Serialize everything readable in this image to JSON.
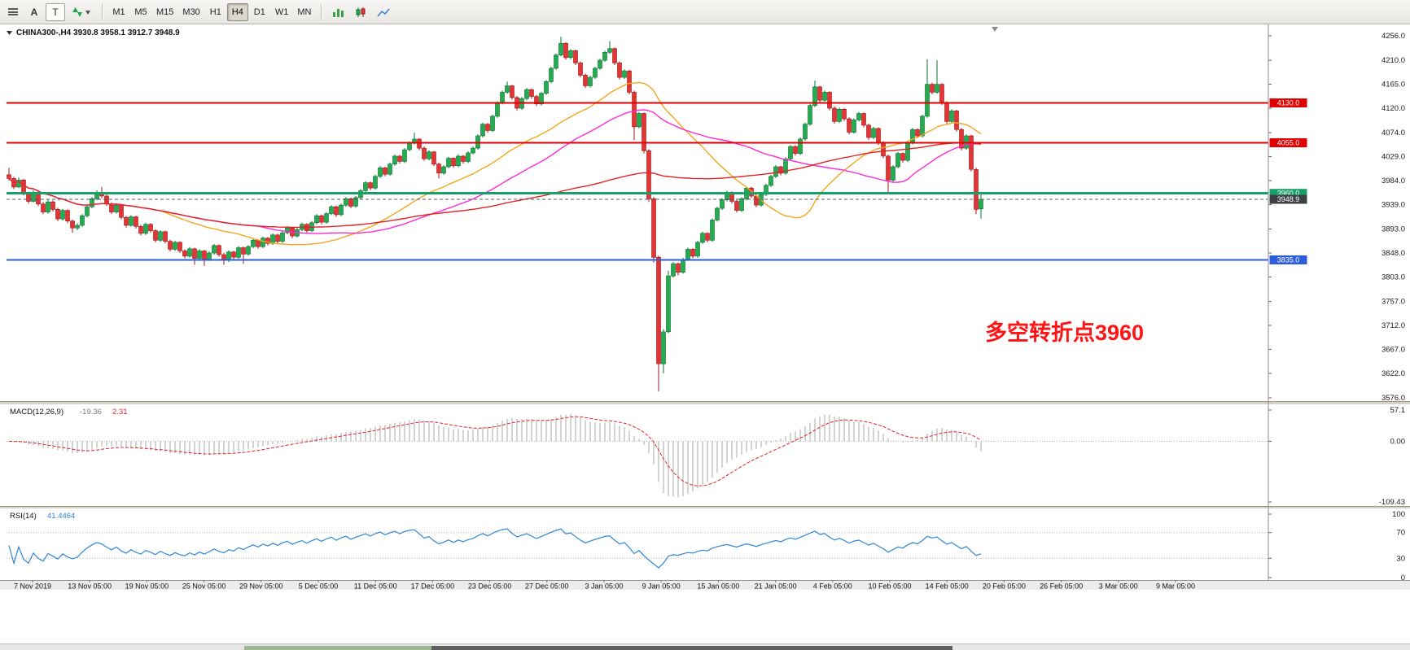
{
  "toolbar": {
    "a_label": "A",
    "t_label": "T",
    "timeframes": [
      "M1",
      "M5",
      "M15",
      "M30",
      "H1",
      "H4",
      "D1",
      "W1",
      "MN"
    ],
    "active_timeframe": "H4"
  },
  "chart": {
    "title": "CHINA300-,H4 3930.8 3958.1 3912.7 3948.9",
    "symbol": "CHINA300-",
    "timeframe": "H4",
    "open": "3930.8",
    "high": "3958.1",
    "low": "3912.7",
    "close": "3948.9"
  },
  "chart_data": {
    "type": "candlestick",
    "symbol": "CHINA300-",
    "timeframe": "H4",
    "ylim": [
      3576.0,
      4256.0
    ],
    "y_ticks": [
      4256.0,
      4210.0,
      4165.0,
      4120.0,
      4074.0,
      4029.0,
      3984.0,
      3939.0,
      3893.0,
      3848.0,
      3803.0,
      3757.0,
      3712.0,
      3667.0,
      3622.0,
      3576.0
    ],
    "x_ticks": [
      "7 Nov 2019",
      "13 Nov 05:00",
      "19 Nov 05:00",
      "25 Nov 05:00",
      "29 Nov 05:00",
      "5 Dec 05:00",
      "11 Dec 05:00",
      "17 Dec 05:00",
      "23 Dec 05:00",
      "27 Dec 05:00",
      "3 Jan 05:00",
      "9 Jan 05:00",
      "15 Jan 05:00",
      "21 Jan 05:00",
      "4 Feb 05:00",
      "10 Feb 05:00",
      "14 Feb 05:00",
      "20 Feb 05:00",
      "26 Feb 05:00",
      "3 Mar 05:00",
      "9 Mar 05:00"
    ],
    "colors": {
      "up_fill": "#25ab50",
      "up_border": "#0d6e2e",
      "down_fill": "#e23535",
      "down_border": "#9e1717",
      "background": "#ffffff"
    },
    "candles": [
      [
        3995,
        4008,
        3984,
        3988
      ],
      [
        3988,
        3991,
        3968,
        3972
      ],
      [
        3972,
        3990,
        3970,
        3985
      ],
      [
        3985,
        3987,
        3956,
        3960
      ],
      [
        3960,
        3963,
        3941,
        3945
      ],
      [
        3945,
        3966,
        3943,
        3962
      ],
      [
        3962,
        3965,
        3936,
        3940
      ],
      [
        3940,
        3944,
        3921,
        3925
      ],
      [
        3925,
        3948,
        3922,
        3944
      ],
      [
        3944,
        3947,
        3926,
        3930
      ],
      [
        3930,
        3933,
        3908,
        3912
      ],
      [
        3912,
        3931,
        3909,
        3928
      ],
      [
        3928,
        3930,
        3904,
        3908
      ],
      [
        3908,
        3911,
        3886,
        3895
      ],
      [
        3895,
        3904,
        3891,
        3900
      ],
      [
        3900,
        3921,
        3897,
        3918
      ],
      [
        3918,
        3938,
        3915,
        3935
      ],
      [
        3935,
        3953,
        3932,
        3950
      ],
      [
        3950,
        3966,
        3947,
        3962
      ],
      [
        3962,
        3972,
        3951,
        3955
      ],
      [
        3955,
        3958,
        3936,
        3940
      ],
      [
        3940,
        3943,
        3921,
        3925
      ],
      [
        3925,
        3941,
        3922,
        3938
      ],
      [
        3938,
        3940,
        3911,
        3915
      ],
      [
        3915,
        3918,
        3896,
        3900
      ],
      [
        3900,
        3919,
        3897,
        3916
      ],
      [
        3916,
        3918,
        3894,
        3898
      ],
      [
        3898,
        3901,
        3881,
        3885
      ],
      [
        3885,
        3905,
        3882,
        3902
      ],
      [
        3902,
        3904,
        3886,
        3890
      ],
      [
        3890,
        3893,
        3868,
        3872
      ],
      [
        3872,
        3891,
        3869,
        3888
      ],
      [
        3888,
        3890,
        3866,
        3870
      ],
      [
        3870,
        3873,
        3851,
        3855
      ],
      [
        3855,
        3871,
        3852,
        3868
      ],
      [
        3868,
        3870,
        3848,
        3852
      ],
      [
        3852,
        3855,
        3838,
        3842
      ],
      [
        3842,
        3859,
        3839,
        3856
      ],
      [
        3856,
        3858,
        3826,
        3838
      ],
      [
        3838,
        3855,
        3835,
        3852
      ],
      [
        3852,
        3854,
        3824,
        3836
      ],
      [
        3836,
        3851,
        3833,
        3848
      ],
      [
        3848,
        3865,
        3845,
        3862
      ],
      [
        3862,
        3864,
        3841,
        3845
      ],
      [
        3845,
        3848,
        3826,
        3834
      ],
      [
        3834,
        3853,
        3831,
        3850
      ],
      [
        3850,
        3852,
        3836,
        3840
      ],
      [
        3840,
        3861,
        3837,
        3858
      ],
      [
        3858,
        3860,
        3828,
        3846
      ],
      [
        3846,
        3863,
        3843,
        3860
      ],
      [
        3860,
        3875,
        3857,
        3872
      ],
      [
        3872,
        3874,
        3856,
        3860
      ],
      [
        3860,
        3879,
        3857,
        3876
      ],
      [
        3876,
        3878,
        3862,
        3866
      ],
      [
        3866,
        3885,
        3863,
        3882
      ],
      [
        3882,
        3884,
        3866,
        3870
      ],
      [
        3870,
        3889,
        3867,
        3886
      ],
      [
        3886,
        3898,
        3883,
        3895
      ],
      [
        3895,
        3897,
        3876,
        3880
      ],
      [
        3880,
        3895,
        3877,
        3892
      ],
      [
        3892,
        3905,
        3889,
        3902
      ],
      [
        3902,
        3904,
        3886,
        3890
      ],
      [
        3890,
        3908,
        3887,
        3905
      ],
      [
        3905,
        3921,
        3902,
        3918
      ],
      [
        3918,
        3920,
        3902,
        3906
      ],
      [
        3906,
        3925,
        3903,
        3922
      ],
      [
        3922,
        3938,
        3919,
        3935
      ],
      [
        3935,
        3937,
        3916,
        3920
      ],
      [
        3920,
        3941,
        3917,
        3938
      ],
      [
        3938,
        3953,
        3935,
        3950
      ],
      [
        3950,
        3952,
        3932,
        3936
      ],
      [
        3936,
        3955,
        3933,
        3952
      ],
      [
        3952,
        3968,
        3949,
        3965
      ],
      [
        3965,
        3983,
        3962,
        3980
      ],
      [
        3980,
        3982,
        3966,
        3970
      ],
      [
        3970,
        3995,
        3967,
        3992
      ],
      [
        3992,
        4011,
        3989,
        4008
      ],
      [
        4008,
        4010,
        3992,
        3996
      ],
      [
        3996,
        4018,
        3993,
        4015
      ],
      [
        4015,
        4033,
        4012,
        4030
      ],
      [
        4030,
        4032,
        4016,
        4020
      ],
      [
        4020,
        4045,
        4017,
        4042
      ],
      [
        4042,
        4058,
        4039,
        4055
      ],
      [
        4055,
        4074,
        4052,
        4062
      ],
      [
        4062,
        4064,
        4041,
        4045
      ],
      [
        4045,
        4048,
        4021,
        4025
      ],
      [
        4025,
        4041,
        4022,
        4038
      ],
      [
        4038,
        4040,
        4011,
        4015
      ],
      [
        4015,
        4018,
        3988,
        3998
      ],
      [
        3998,
        4013,
        3995,
        4010
      ],
      [
        4010,
        4029,
        4007,
        4026
      ],
      [
        4026,
        4028,
        4008,
        4012
      ],
      [
        4012,
        4033,
        4009,
        4030
      ],
      [
        4030,
        4032,
        4016,
        4020
      ],
      [
        4020,
        4039,
        4017,
        4036
      ],
      [
        4036,
        4048,
        4033,
        4045
      ],
      [
        4045,
        4071,
        4042,
        4068
      ],
      [
        4068,
        4093,
        4065,
        4090
      ],
      [
        4090,
        4092,
        4074,
        4078
      ],
      [
        4078,
        4108,
        4075,
        4105
      ],
      [
        4105,
        4133,
        4102,
        4130
      ],
      [
        4130,
        4153,
        4127,
        4150
      ],
      [
        4150,
        4170,
        4147,
        4162
      ],
      [
        4162,
        4164,
        4136,
        4140
      ],
      [
        4140,
        4143,
        4116,
        4120
      ],
      [
        4120,
        4141,
        4117,
        4138
      ],
      [
        4138,
        4158,
        4135,
        4155
      ],
      [
        4155,
        4157,
        4138,
        4142
      ],
      [
        4142,
        4145,
        4124,
        4128
      ],
      [
        4128,
        4151,
        4125,
        4148
      ],
      [
        4148,
        4173,
        4145,
        4170
      ],
      [
        4170,
        4198,
        4167,
        4195
      ],
      [
        4195,
        4223,
        4192,
        4220
      ],
      [
        4220,
        4254,
        4217,
        4242
      ],
      [
        4242,
        4244,
        4211,
        4215
      ],
      [
        4215,
        4231,
        4212,
        4228
      ],
      [
        4228,
        4230,
        4201,
        4205
      ],
      [
        4205,
        4208,
        4178,
        4182
      ],
      [
        4182,
        4185,
        4158,
        4162
      ],
      [
        4162,
        4181,
        4159,
        4178
      ],
      [
        4178,
        4198,
        4175,
        4195
      ],
      [
        4195,
        4213,
        4192,
        4210
      ],
      [
        4210,
        4228,
        4207,
        4225
      ],
      [
        4225,
        4246,
        4222,
        4232
      ],
      [
        4232,
        4234,
        4201,
        4205
      ],
      [
        4205,
        4208,
        4174,
        4178
      ],
      [
        4178,
        4193,
        4175,
        4190
      ],
      [
        4190,
        4192,
        4146,
        4150
      ],
      [
        4150,
        4153,
        4060,
        4085
      ],
      [
        4085,
        4113,
        4082,
        4110
      ],
      [
        4110,
        4112,
        4035,
        4040
      ],
      [
        4040,
        4043,
        3944,
        3950
      ],
      [
        3950,
        3953,
        3830,
        3840
      ],
      [
        3840,
        3843,
        3588,
        3640
      ],
      [
        3640,
        3705,
        3622,
        3700
      ],
      [
        3700,
        3815,
        3697,
        3805
      ],
      [
        3805,
        3831,
        3802,
        3828
      ],
      [
        3828,
        3830,
        3806,
        3812
      ],
      [
        3812,
        3839,
        3809,
        3836
      ],
      [
        3836,
        3858,
        3833,
        3855
      ],
      [
        3855,
        3857,
        3838,
        3842
      ],
      [
        3842,
        3871,
        3839,
        3868
      ],
      [
        3868,
        3888,
        3865,
        3885
      ],
      [
        3885,
        3887,
        3868,
        3872
      ],
      [
        3872,
        3913,
        3869,
        3910
      ],
      [
        3910,
        3935,
        3907,
        3932
      ],
      [
        3932,
        3951,
        3929,
        3948
      ],
      [
        3948,
        3965,
        3945,
        3962
      ],
      [
        3962,
        3964,
        3941,
        3945
      ],
      [
        3945,
        3948,
        3924,
        3928
      ],
      [
        3928,
        3953,
        3925,
        3950
      ],
      [
        3950,
        3973,
        3947,
        3970
      ],
      [
        3970,
        3972,
        3951,
        3955
      ],
      [
        3955,
        3958,
        3934,
        3938
      ],
      [
        3938,
        3961,
        3935,
        3958
      ],
      [
        3958,
        3978,
        3955,
        3975
      ],
      [
        3975,
        3995,
        3972,
        3992
      ],
      [
        3992,
        4013,
        3989,
        4010
      ],
      [
        4010,
        4012,
        3994,
        3998
      ],
      [
        3998,
        4028,
        3995,
        4025
      ],
      [
        4025,
        4051,
        4022,
        4048
      ],
      [
        4048,
        4050,
        4031,
        4035
      ],
      [
        4035,
        4065,
        4032,
        4062
      ],
      [
        4062,
        4093,
        4059,
        4090
      ],
      [
        4090,
        4128,
        4087,
        4125
      ],
      [
        4125,
        4172,
        4122,
        4160
      ],
      [
        4160,
        4162,
        4131,
        4135
      ],
      [
        4135,
        4153,
        4132,
        4150
      ],
      [
        4150,
        4152,
        4116,
        4120
      ],
      [
        4120,
        4123,
        4091,
        4095
      ],
      [
        4095,
        4121,
        4092,
        4118
      ],
      [
        4118,
        4120,
        4096,
        4100
      ],
      [
        4100,
        4103,
        4071,
        4075
      ],
      [
        4075,
        4101,
        4072,
        4098
      ],
      [
        4098,
        4113,
        4095,
        4110
      ],
      [
        4110,
        4112,
        4084,
        4088
      ],
      [
        4088,
        4091,
        4061,
        4065
      ],
      [
        4065,
        4085,
        4062,
        4082
      ],
      [
        4082,
        4084,
        4051,
        4055
      ],
      [
        4055,
        4058,
        4026,
        4030
      ],
      [
        4030,
        4033,
        3958,
        3985
      ],
      [
        3985,
        4013,
        3982,
        4010
      ],
      [
        4010,
        4038,
        4007,
        4035
      ],
      [
        4035,
        4037,
        4018,
        4022
      ],
      [
        4022,
        4058,
        4019,
        4055
      ],
      [
        4055,
        4083,
        4052,
        4080
      ],
      [
        4080,
        4082,
        4064,
        4068
      ],
      [
        4068,
        4108,
        4065,
        4105
      ],
      [
        4105,
        4212,
        4102,
        4165
      ],
      [
        4165,
        4168,
        4146,
        4150
      ],
      [
        4150,
        4210,
        4147,
        4165
      ],
      [
        4165,
        4167,
        4126,
        4130
      ],
      [
        4130,
        4133,
        4091,
        4095
      ],
      [
        4095,
        4118,
        4092,
        4115
      ],
      [
        4115,
        4117,
        4076,
        4080
      ],
      [
        4080,
        4083,
        4041,
        4045
      ],
      [
        4045,
        4071,
        4042,
        4068
      ],
      [
        4068,
        4070,
        4001,
        4005
      ],
      [
        4005,
        4008,
        3921,
        3930
      ],
      [
        3930.8,
        3958.1,
        3912.7,
        3948.9
      ]
    ],
    "moving_averages": [
      {
        "name": "medium",
        "color": "#f2a71d",
        "period": 32
      },
      {
        "name": "fast",
        "color": "#ff2ad4",
        "period": 52
      },
      {
        "name": "slow",
        "color": "#e02424",
        "period": 115
      }
    ],
    "horizontal_levels": [
      {
        "price": 4130.0,
        "label": "4130.0",
        "color": "#e00000",
        "width": 1.6
      },
      {
        "price": 4055.0,
        "label": "4055.0",
        "color": "#e00000",
        "width": 1.6
      },
      {
        "price": 3960.0,
        "label": "3960.0",
        "color": "#18a06a",
        "width": 3
      },
      {
        "price": 3835.0,
        "label": "3835.0",
        "color": "#2b5cd9",
        "width": 2.4
      }
    ],
    "current_price": {
      "value": 3948.9,
      "label": "3948.9",
      "badge_color": "#3c4144"
    },
    "annotation": {
      "text": "多空转折点3960",
      "color": "#fe1414"
    }
  },
  "indicators": {
    "macd": {
      "title": "MACD(12,26,9)",
      "value": "-19.36",
      "signal_value": "2.31",
      "fast": 12,
      "slow": 26,
      "signal": 9,
      "range": [
        -109.43,
        57.1
      ],
      "scale": [
        {
          "v": 57.1,
          "label": "57.1"
        },
        {
          "v": 0,
          "label": "0.00"
        },
        {
          "v": -109.43,
          "label": "-109.43"
        }
      ],
      "histogram_color": "#a9a9a9",
      "signal_color": "#e02424"
    },
    "rsi": {
      "title": "RSI(14)",
      "value": "41.4464",
      "period": 14,
      "range": [
        0,
        100
      ],
      "levels": [
        70,
        30
      ],
      "scale": [
        {
          "v": 100,
          "label": "100"
        },
        {
          "v": 70,
          "label": "70"
        },
        {
          "v": 30,
          "label": "30"
        },
        {
          "v": 0,
          "label": "0"
        }
      ],
      "color": "#2f86d6"
    }
  }
}
